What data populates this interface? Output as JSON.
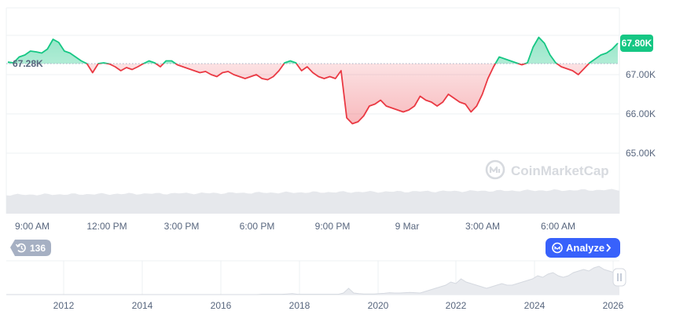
{
  "chart_data": {
    "type": "line",
    "y_axis": {
      "ticks": [
        "67.00K",
        "66.00K",
        "65.00K"
      ],
      "tick_values": [
        67000,
        66000,
        65000
      ],
      "range": [
        64000,
        68500
      ],
      "position": "right"
    },
    "x_axis": {
      "ticks": [
        "9:00 AM",
        "12:00 PM",
        "3:00 PM",
        "6:00 PM",
        "9:00 PM",
        "9 Mar",
        "3:00 AM",
        "6:00 AM"
      ]
    },
    "reference_line": {
      "label": "67.28K",
      "value": 67280
    },
    "current_price": {
      "label": "67.80K",
      "value": 67800
    },
    "series": [
      {
        "values": [
          67320,
          67300,
          67450,
          67500,
          67600,
          67580,
          67550,
          67650,
          67900,
          67820,
          67600,
          67550,
          67450,
          67350,
          67280,
          67050,
          67280,
          67300,
          67270,
          67200,
          67100,
          67180,
          67130,
          67200,
          67280,
          67350,
          67300,
          67200,
          67350,
          67350,
          67250,
          67200,
          67150,
          67100,
          67050,
          67080,
          67000,
          66950,
          67050,
          67080,
          67000,
          66950,
          66900,
          66950,
          67000,
          66900,
          66870,
          66950,
          67100,
          67300,
          67350,
          67300,
          67100,
          67200,
          67050,
          66950,
          66900,
          66950,
          66900,
          67100,
          65900,
          65750,
          65800,
          65950,
          66200,
          66250,
          66350,
          66200,
          66150,
          66100,
          66050,
          66100,
          66200,
          66450,
          66350,
          66300,
          66200,
          66300,
          66500,
          66400,
          66300,
          66250,
          66050,
          66200,
          66500,
          66900,
          67200,
          67450,
          67400,
          67350,
          67300,
          67250,
          67300,
          67700,
          67950,
          67800,
          67500,
          67300,
          67200,
          67150,
          67100,
          67000,
          67150,
          67300,
          67400,
          67500,
          67550,
          67650,
          67800
        ],
        "color_above": "#16c784",
        "color_below": "#ea3943"
      }
    ],
    "volume": {
      "type": "area",
      "color": "#e6e8ec"
    },
    "overview": {
      "x_ticks": [
        "2012",
        "2014",
        "2016",
        "2018",
        "2020",
        "2022",
        "2024",
        "2026"
      ],
      "values": [
        0,
        0,
        0,
        0,
        0,
        0,
        0,
        0,
        0,
        0,
        0,
        0,
        0,
        0,
        0,
        0,
        0,
        0,
        0,
        0,
        0,
        0,
        0,
        0,
        0,
        0,
        0,
        0,
        0,
        0,
        0,
        0,
        0,
        0,
        0,
        0,
        0,
        0,
        0,
        0,
        0,
        0,
        0,
        0,
        0,
        0,
        0,
        0,
        0,
        0,
        0.01,
        0.01,
        0.01,
        0.01,
        0.01,
        0.02,
        0.03,
        0.01,
        0.01,
        0.01,
        0.01,
        0.01,
        0.01,
        0.01,
        0.01,
        0.01,
        0.05,
        0.2,
        0.05,
        0.03,
        0.02,
        0.02,
        0.02,
        0.03,
        0.04,
        0.06,
        0.05,
        0.05,
        0.06,
        0.07,
        0.06,
        0.05,
        0.1,
        0.15,
        0.2,
        0.25,
        0.3,
        0.4,
        0.35,
        0.5,
        0.4,
        0.35,
        0.3,
        0.25,
        0.2,
        0.25,
        0.3,
        0.35,
        0.3,
        0.3,
        0.35,
        0.4,
        0.45,
        0.5,
        0.6,
        0.55,
        0.65,
        0.7,
        0.6,
        0.55,
        0.6,
        0.7,
        0.75,
        0.8,
        0.75,
        0.85,
        0.9,
        0.8,
        0.75,
        0.7,
        0.8
      ]
    }
  },
  "watermark": {
    "text": "CoinMarketCap"
  },
  "controls": {
    "history_count": "136",
    "analyze_label": "Analyze",
    "icons": [
      "history-icon",
      "analyze-icon",
      "chevron-right-icon",
      "scrollbar-grip-icon",
      "coinmarketcap-logo-icon"
    ]
  },
  "colors": {
    "up": "#16c784",
    "down": "#ea3943",
    "accent": "#3861fb",
    "pill_gray": "#a6b0c3",
    "grid": "#eef0f3",
    "axis_text": "#58667e"
  }
}
